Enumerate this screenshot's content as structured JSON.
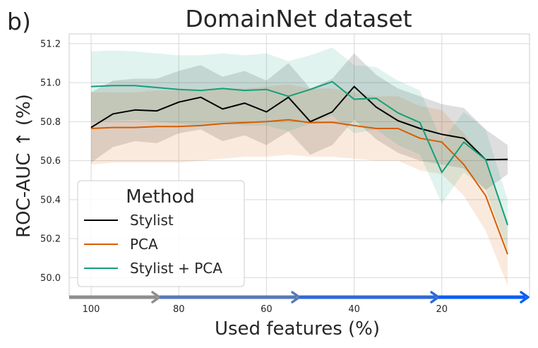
{
  "panel_label": "b)",
  "chart_data": {
    "type": "line",
    "title": "DomainNet dataset",
    "xlabel": "Used features (%)",
    "ylabel": "ROC-AUC ↑ (%)",
    "xlim": [
      105,
      0
    ],
    "ylim": [
      49.9,
      51.25
    ],
    "x_ticks": [
      100,
      80,
      60,
      40,
      20
    ],
    "y_ticks": [
      50.0,
      50.2,
      50.4,
      50.6,
      50.8,
      51.0,
      51.2
    ],
    "x_tick_labels": [
      "100",
      "80",
      "60",
      "40",
      "20"
    ],
    "y_tick_labels": [
      "50.0",
      "50.2",
      "50.4",
      "50.6",
      "50.8",
      "51.0",
      "51.2"
    ],
    "grid": true,
    "legend": {
      "title": "Method",
      "placement": "lower-left"
    },
    "x": [
      100,
      95,
      90,
      85,
      80,
      75,
      70,
      65,
      60,
      55,
      50,
      45,
      40,
      35,
      30,
      25,
      20,
      15,
      10,
      5
    ],
    "series": [
      {
        "name": "Stylist",
        "color": "#000000",
        "values": [
          50.77,
          50.84,
          50.86,
          50.855,
          50.9,
          50.925,
          50.865,
          50.895,
          50.85,
          50.925,
          50.8,
          50.85,
          50.98,
          50.875,
          50.805,
          50.765,
          50.735,
          50.715,
          50.605,
          50.607
        ],
        "upper": [
          50.95,
          51.01,
          51.02,
          51.02,
          51.06,
          51.09,
          51.03,
          51.06,
          51.01,
          51.1,
          50.97,
          51.02,
          51.15,
          51.04,
          50.97,
          50.93,
          50.89,
          50.87,
          50.76,
          50.68
        ],
        "lower": [
          50.59,
          50.67,
          50.7,
          50.69,
          50.74,
          50.76,
          50.7,
          50.73,
          50.68,
          50.75,
          50.63,
          50.68,
          50.81,
          50.71,
          50.64,
          50.6,
          50.58,
          50.56,
          50.45,
          50.53
        ]
      },
      {
        "name": "PCA",
        "color": "#d55e00",
        "values": [
          50.765,
          50.77,
          50.77,
          50.775,
          50.775,
          50.78,
          50.79,
          50.795,
          50.8,
          50.81,
          50.795,
          50.797,
          50.78,
          50.765,
          50.765,
          50.715,
          50.695,
          50.58,
          50.42,
          50.12
        ],
        "upper": [
          50.95,
          50.95,
          50.95,
          50.96,
          50.96,
          50.96,
          50.97,
          50.97,
          50.98,
          50.99,
          50.97,
          50.97,
          50.95,
          50.93,
          50.93,
          50.88,
          50.86,
          50.74,
          50.6,
          50.29
        ],
        "lower": [
          50.58,
          50.59,
          50.59,
          50.59,
          50.59,
          50.6,
          50.61,
          50.62,
          50.62,
          50.63,
          50.62,
          50.62,
          50.61,
          50.6,
          50.6,
          50.55,
          50.53,
          50.42,
          50.24,
          49.96
        ]
      },
      {
        "name": "Stylist + PCA",
        "color": "#14a07a",
        "values": [
          50.98,
          50.985,
          50.985,
          50.975,
          50.965,
          50.96,
          50.97,
          50.96,
          50.965,
          50.93,
          50.965,
          51.005,
          50.915,
          50.92,
          50.845,
          50.795,
          50.54,
          50.695,
          50.605,
          50.27
        ],
        "upper": [
          51.16,
          51.165,
          51.16,
          51.15,
          51.14,
          51.14,
          51.15,
          51.14,
          51.15,
          51.11,
          51.14,
          51.18,
          51.09,
          51.08,
          51.01,
          50.96,
          50.7,
          50.85,
          50.76,
          50.4
        ],
        "lower": [
          50.8,
          50.805,
          50.81,
          50.8,
          50.79,
          50.78,
          50.79,
          50.78,
          50.78,
          50.75,
          50.79,
          50.83,
          50.74,
          50.76,
          50.68,
          50.63,
          50.38,
          50.54,
          50.45,
          50.14
        ]
      }
    ],
    "arrow_colors": [
      "#8e8e8e",
      "#5679b8",
      "#2e69d6",
      "#0a5ff0"
    ]
  }
}
